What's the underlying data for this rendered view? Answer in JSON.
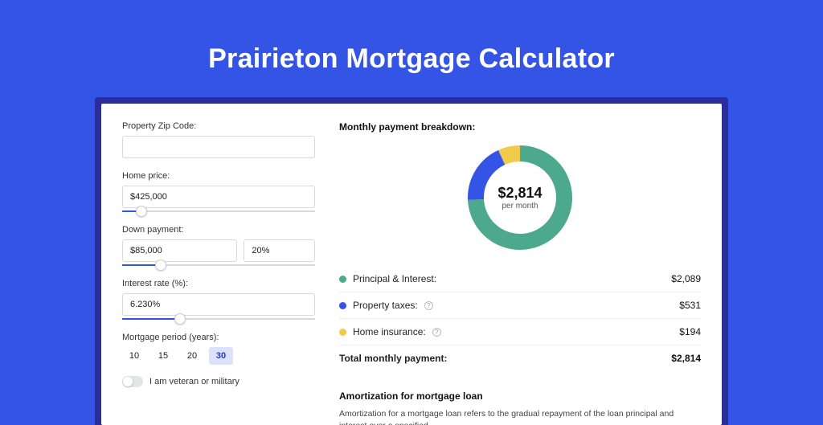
{
  "page_title": "Prairieton Mortgage Calculator",
  "colors": {
    "bg": "#3454e6",
    "panel_border": "#2b2e9a",
    "panel_bg": "#ffffff",
    "accent": "#3454e6",
    "slider_track": "#d7d9dd",
    "period_selected_bg": "#dbe2fb",
    "period_selected_text": "#1d3ccf"
  },
  "form": {
    "zip": {
      "label": "Property Zip Code:",
      "value": ""
    },
    "home_price": {
      "label": "Home price:",
      "value": "$425,000",
      "slider_pct": 10
    },
    "down_payment": {
      "label": "Down payment:",
      "amount": "$85,000",
      "pct_text": "20%",
      "slider_pct": 20
    },
    "interest": {
      "label": "Interest rate (%):",
      "value": "6.230%",
      "slider_pct": 30
    },
    "period": {
      "label": "Mortgage period (years):",
      "options": [
        "10",
        "15",
        "20",
        "30"
      ],
      "selected": "30"
    },
    "veteran": {
      "label": "I am veteran or military",
      "on": false
    }
  },
  "breakdown": {
    "title": "Monthly payment breakdown:",
    "center_amount": "$2,814",
    "center_sub": "per month",
    "donut": {
      "size": 130,
      "ring_width": 20,
      "segments": [
        {
          "label": "Principal & Interest:",
          "value": "$2,089",
          "pct": 74.2,
          "color": "#4ca98b"
        },
        {
          "label": "Property taxes:",
          "value": "$531",
          "pct": 18.9,
          "color": "#3454e6",
          "info": true
        },
        {
          "label": "Home insurance:",
          "value": "$194",
          "pct": 6.9,
          "color": "#f2ca4b",
          "info": true
        }
      ]
    },
    "total": {
      "label": "Total monthly payment:",
      "value": "$2,814"
    }
  },
  "amortization": {
    "title": "Amortization for mortgage loan",
    "text": "Amortization for a mortgage loan refers to the gradual repayment of the loan principal and interest over a specified"
  }
}
